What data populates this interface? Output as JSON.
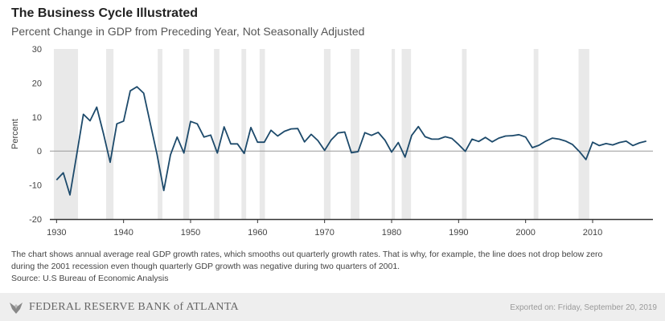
{
  "chart_data": {
    "type": "line",
    "title": "The Business Cycle Illustrated",
    "subtitle": "Percent Change in GDP from Preceding Year, Not Seasonally Adjusted",
    "ylabel": "Percent",
    "xlabel": "",
    "xlim": [
      1929,
      2019
    ],
    "ylim": [
      -20,
      30
    ],
    "yticks": [
      30,
      20,
      10,
      0,
      -10,
      -20
    ],
    "xticks": [
      1930,
      1940,
      1950,
      1960,
      1970,
      1980,
      1990,
      2000,
      2010
    ],
    "grid": false,
    "zero_line": true,
    "line_color": "#1d4a6b",
    "recession_color": "#e9e9e9",
    "recessions": [
      [
        1929.6,
        1933.2
      ],
      [
        1937.4,
        1938.5
      ],
      [
        1945.1,
        1945.8
      ],
      [
        1948.9,
        1949.8
      ],
      [
        1953.5,
        1954.3
      ],
      [
        1957.6,
        1958.3
      ],
      [
        1960.3,
        1961.1
      ],
      [
        1969.9,
        1970.9
      ],
      [
        1973.9,
        1975.2
      ],
      [
        1980.0,
        1980.5
      ],
      [
        1981.5,
        1982.9
      ],
      [
        1990.5,
        1991.2
      ],
      [
        2001.2,
        2001.9
      ],
      [
        2007.9,
        2009.5
      ]
    ],
    "series": [
      {
        "x": [
          1930,
          1931,
          1932,
          1933,
          1934,
          1935,
          1936,
          1937,
          1938,
          1939,
          1940,
          1941,
          1942,
          1943,
          1944,
          1945,
          1946,
          1947,
          1948,
          1949,
          1950,
          1951,
          1952,
          1953,
          1954,
          1955,
          1956,
          1957,
          1958,
          1959,
          1960,
          1961,
          1962,
          1963,
          1964,
          1965,
          1966,
          1967,
          1968,
          1969,
          1970,
          1971,
          1972,
          1973,
          1974,
          1975,
          1976,
          1977,
          1978,
          1979,
          1980,
          1981,
          1982,
          1983,
          1984,
          1985,
          1986,
          1987,
          1988,
          1989,
          1990,
          1991,
          1992,
          1993,
          1994,
          1995,
          1996,
          1997,
          1998,
          1999,
          2000,
          2001,
          2002,
          2003,
          2004,
          2005,
          2006,
          2007,
          2008,
          2009,
          2010,
          2011,
          2012,
          2013,
          2014,
          2015,
          2016,
          2017,
          2018
        ],
        "values": [
          -8.5,
          -6.4,
          -12.9,
          -1.2,
          10.8,
          8.9,
          12.9,
          5.1,
          -3.3,
          8.0,
          8.8,
          17.7,
          18.9,
          17.0,
          8.0,
          -1.0,
          -11.6,
          -1.1,
          4.1,
          -0.6,
          8.7,
          8.0,
          4.1,
          4.7,
          -0.6,
          7.1,
          2.1,
          2.1,
          -0.7,
          6.9,
          2.6,
          2.6,
          6.1,
          4.4,
          5.8,
          6.5,
          6.6,
          2.7,
          4.9,
          3.1,
          0.2,
          3.3,
          5.3,
          5.6,
          -0.5,
          -0.2,
          5.4,
          4.6,
          5.5,
          3.2,
          -0.3,
          2.5,
          -1.8,
          4.6,
          7.2,
          4.2,
          3.5,
          3.5,
          4.2,
          3.7,
          1.9,
          -0.1,
          3.5,
          2.8,
          4.0,
          2.7,
          3.8,
          4.4,
          4.5,
          4.8,
          4.1,
          1.0,
          1.7,
          2.9,
          3.8,
          3.5,
          2.9,
          1.9,
          -0.1,
          -2.5,
          2.6,
          1.6,
          2.2,
          1.8,
          2.5,
          2.9,
          1.6,
          2.4,
          2.9
        ]
      }
    ]
  },
  "note": {
    "line1": "The chart shows annual average real GDP growth rates, which smooths out quarterly growth rates. That is why, for example, the line does not drop below zero",
    "line2": "during the 2001 recession even though quarterly GDP growth was negative during two quarters of 2001.",
    "source": "Source: U.S Bureau of Economic Analysis"
  },
  "footer": {
    "logo_text": "FEDERAL RESERVE BANK of ATLANTA",
    "exported": "Exported on: Friday, September 20, 2019"
  }
}
